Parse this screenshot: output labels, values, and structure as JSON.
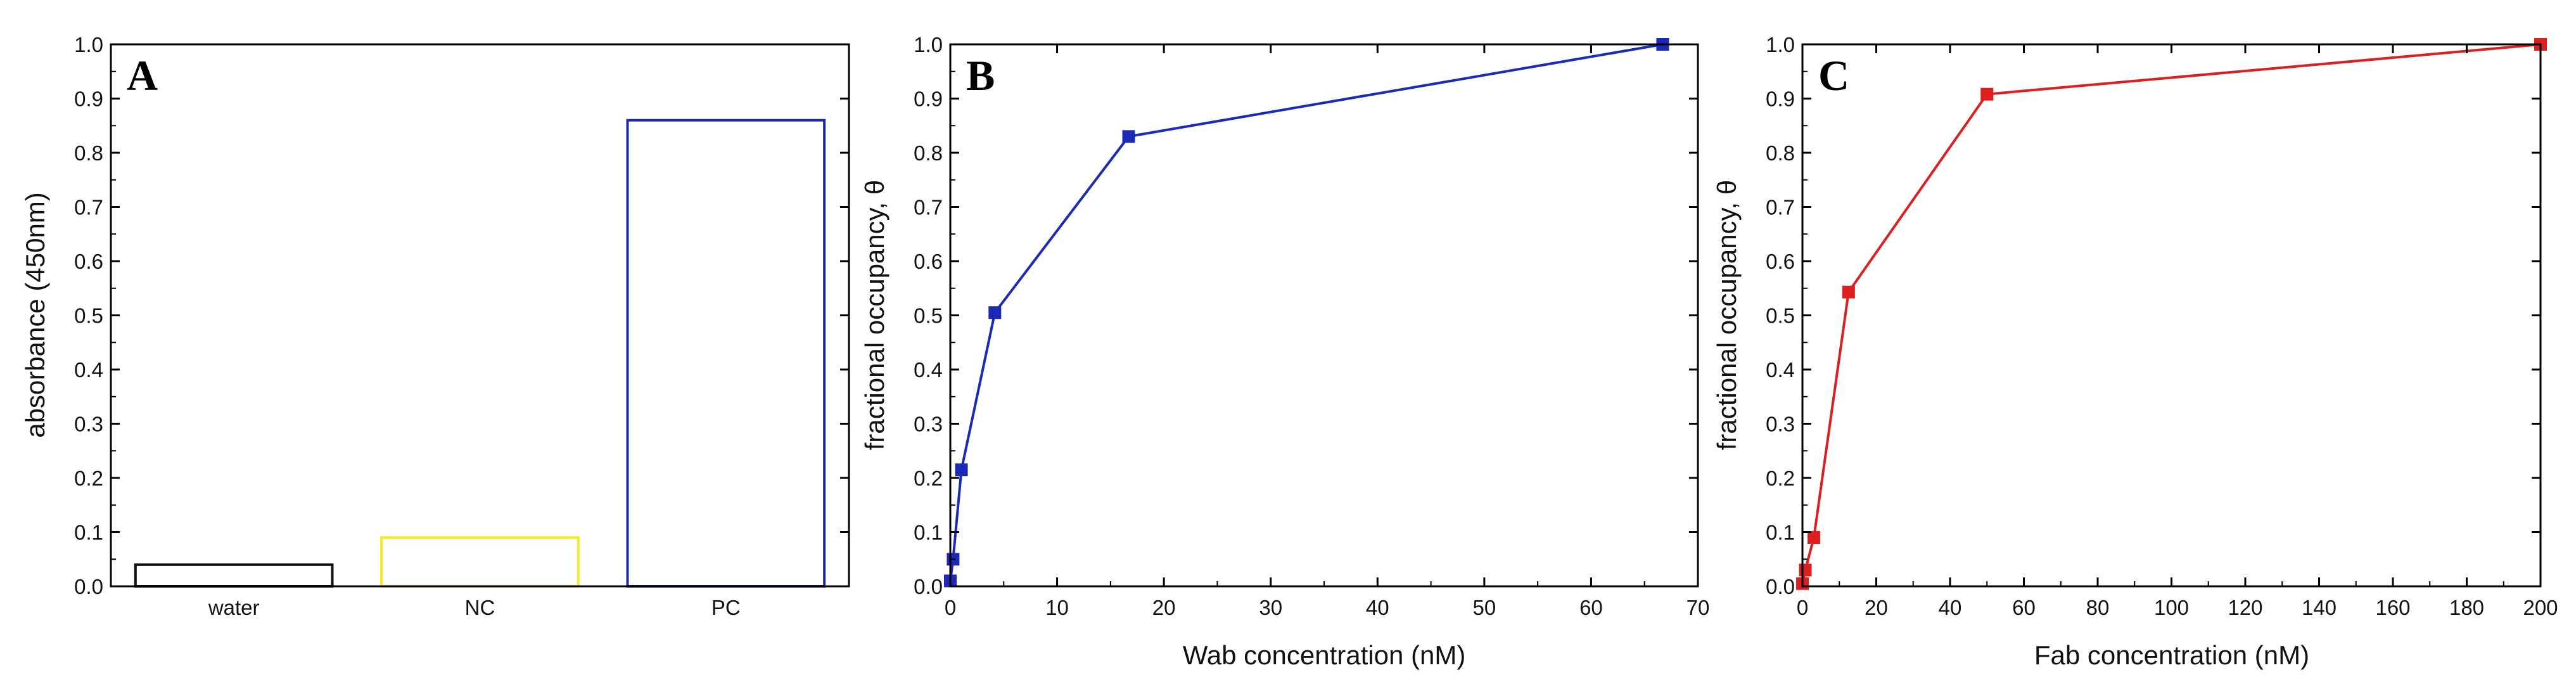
{
  "chart_data": [
    {
      "type": "bar",
      "panel": "A",
      "categories": [
        "water",
        "NC",
        "PC"
      ],
      "values": [
        0.04,
        0.09,
        0.86
      ],
      "bar_colors": [
        "#111111",
        "#f2ea2a",
        "#1c2aa6"
      ],
      "bar_fill": "none",
      "xlabel": "",
      "ylabel": "absorbance (450nm)",
      "ylim": [
        0,
        1.0
      ],
      "yticks": [
        0.0,
        0.1,
        0.2,
        0.3,
        0.4,
        0.5,
        0.6,
        0.7,
        0.8,
        0.9,
        1.0
      ],
      "ytick_labels": [
        "0.0",
        "0.1",
        "0.2",
        "0.3",
        "0.4",
        "0.5",
        "0.6",
        "0.7",
        "0.8",
        "0.9",
        "1.0"
      ],
      "grid": false,
      "legend": "none"
    },
    {
      "type": "line",
      "panel": "B",
      "series": [
        {
          "color": "#1c2ab8",
          "marker": "square",
          "x": [
            0,
            0.26,
            1.04,
            4.17,
            16.7,
            66.7
          ],
          "y": [
            0.01,
            0.05,
            0.215,
            0.505,
            0.83,
            1.0
          ]
        }
      ],
      "xlabel": "Wab concentration (nM)",
      "ylabel": "fractional occupancy, θ",
      "xlim": [
        0,
        70
      ],
      "ylim": [
        0,
        1.0
      ],
      "xticks": [
        0,
        10,
        20,
        30,
        40,
        50,
        60,
        70
      ],
      "xtick_labels": [
        "0",
        "10",
        "20",
        "30",
        "40",
        "50",
        "60",
        "70"
      ],
      "yticks": [
        0.0,
        0.1,
        0.2,
        0.3,
        0.4,
        0.5,
        0.6,
        0.7,
        0.8,
        0.9,
        1.0
      ],
      "ytick_labels": [
        "0.0",
        "0.1",
        "0.2",
        "0.3",
        "0.4",
        "0.5",
        "0.6",
        "0.7",
        "0.8",
        "0.9",
        "1.0"
      ],
      "grid": false,
      "legend": "none"
    },
    {
      "type": "line",
      "panel": "C",
      "series": [
        {
          "color": "#dd1f1f",
          "marker": "square",
          "x": [
            0,
            0.78,
            3.1,
            12.5,
            50,
            200
          ],
          "y": [
            0.005,
            0.03,
            0.09,
            0.543,
            0.908,
            1.0
          ]
        }
      ],
      "xlabel": "Fab concentration (nM)",
      "ylabel": "fractional occupancy, θ",
      "xlim": [
        0,
        200
      ],
      "ylim": [
        0,
        1.0
      ],
      "xticks": [
        0,
        20,
        40,
        60,
        80,
        100,
        120,
        140,
        160,
        180,
        200
      ],
      "xtick_labels": [
        "0",
        "20",
        "40",
        "60",
        "80",
        "100",
        "120",
        "140",
        "160",
        "180",
        "200"
      ],
      "yticks": [
        0.0,
        0.1,
        0.2,
        0.3,
        0.4,
        0.5,
        0.6,
        0.7,
        0.8,
        0.9,
        1.0
      ],
      "ytick_labels": [
        "0.0",
        "0.1",
        "0.2",
        "0.3",
        "0.4",
        "0.5",
        "0.6",
        "0.7",
        "0.8",
        "0.9",
        "1.0"
      ],
      "grid": false,
      "legend": "none"
    }
  ]
}
